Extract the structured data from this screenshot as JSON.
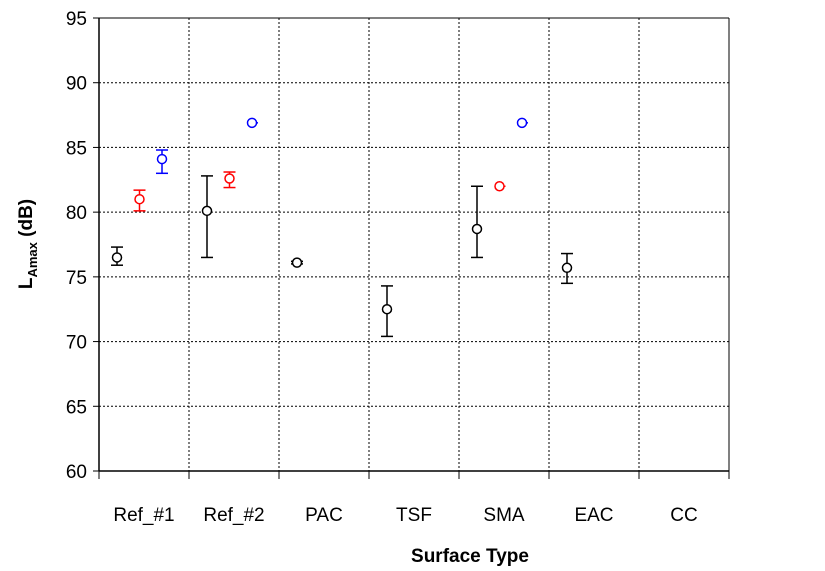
{
  "chart_data": {
    "type": "scatter",
    "xlabel": "Surface Type",
    "ylabel": {
      "main": "L",
      "sub": "Amax",
      "unit": " (dB)"
    },
    "ylim": [
      60,
      95
    ],
    "yticks": [
      60,
      65,
      70,
      75,
      80,
      85,
      90,
      95
    ],
    "grid": true,
    "categories": [
      "Ref_#1",
      "Ref_#2",
      "PAC",
      "TSF",
      "SMA",
      "EAC",
      "CC"
    ],
    "series": [
      {
        "color": "#000000",
        "offset_index": 0,
        "points": [
          {
            "category": "Ref_#1",
            "y": 76.5,
            "err_low": 75.9,
            "err_high": 77.3
          },
          {
            "category": "Ref_#2",
            "y": 80.1,
            "err_low": 76.5,
            "err_high": 82.8
          },
          {
            "category": "PAC",
            "y": 76.1,
            "err_low": 76.0,
            "err_high": 76.2
          },
          {
            "category": "TSF",
            "y": 72.5,
            "err_low": 70.4,
            "err_high": 74.3
          },
          {
            "category": "SMA",
            "y": 78.7,
            "err_low": 76.5,
            "err_high": 82.0
          },
          {
            "category": "EAC",
            "y": 75.7,
            "err_low": 74.5,
            "err_high": 76.8
          }
        ]
      },
      {
        "color": "#ff0000",
        "offset_index": 1,
        "points": [
          {
            "category": "Ref_#1",
            "y": 81.0,
            "err_low": 80.1,
            "err_high": 81.7
          },
          {
            "category": "Ref_#2",
            "y": 82.6,
            "err_low": 81.9,
            "err_high": 83.1
          },
          {
            "category": "SMA",
            "y": 82.0,
            "err_low": 82.0,
            "err_high": 82.0
          }
        ]
      },
      {
        "color": "#0000ff",
        "offset_index": 2,
        "points": [
          {
            "category": "Ref_#1",
            "y": 84.1,
            "err_low": 83.0,
            "err_high": 84.8
          },
          {
            "category": "Ref_#2",
            "y": 86.9,
            "err_low": 86.9,
            "err_high": 86.9
          },
          {
            "category": "SMA",
            "y": 86.9,
            "err_low": 86.9,
            "err_high": 86.9
          }
        ]
      }
    ]
  }
}
